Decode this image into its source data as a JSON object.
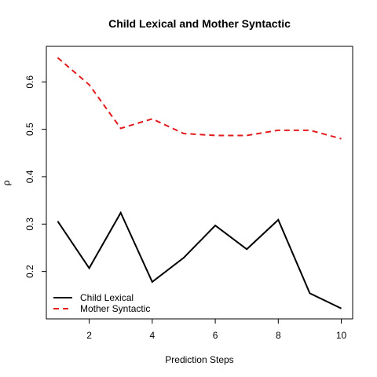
{
  "chart_data": {
    "type": "line",
    "title": "Child Lexical and Mother Syntactic",
    "xlabel": "Prediction Steps",
    "ylabel": "ρ",
    "x": [
      1,
      2,
      3,
      4,
      5,
      6,
      7,
      8,
      9,
      10
    ],
    "xlim": [
      0.64,
      10.36
    ],
    "ylim": [
      0.1,
      0.675
    ],
    "xticks": [
      "2",
      "4",
      "6",
      "8",
      "10"
    ],
    "yticks": [
      "0.2",
      "0.3",
      "0.4",
      "0.5",
      "0.6"
    ],
    "legend_position": "bottom-left",
    "series": [
      {
        "name": "Child Lexical",
        "color": "#000000",
        "style": "solid",
        "values": [
          0.306,
          0.207,
          0.324,
          0.178,
          0.229,
          0.297,
          0.247,
          0.309,
          0.154,
          0.122
        ]
      },
      {
        "name": "Mother Syntactic",
        "color": "#e31a1c",
        "style": "dashed",
        "values": [
          0.651,
          0.594,
          0.502,
          0.522,
          0.491,
          0.487,
          0.487,
          0.498,
          0.498,
          0.48
        ]
      }
    ]
  }
}
